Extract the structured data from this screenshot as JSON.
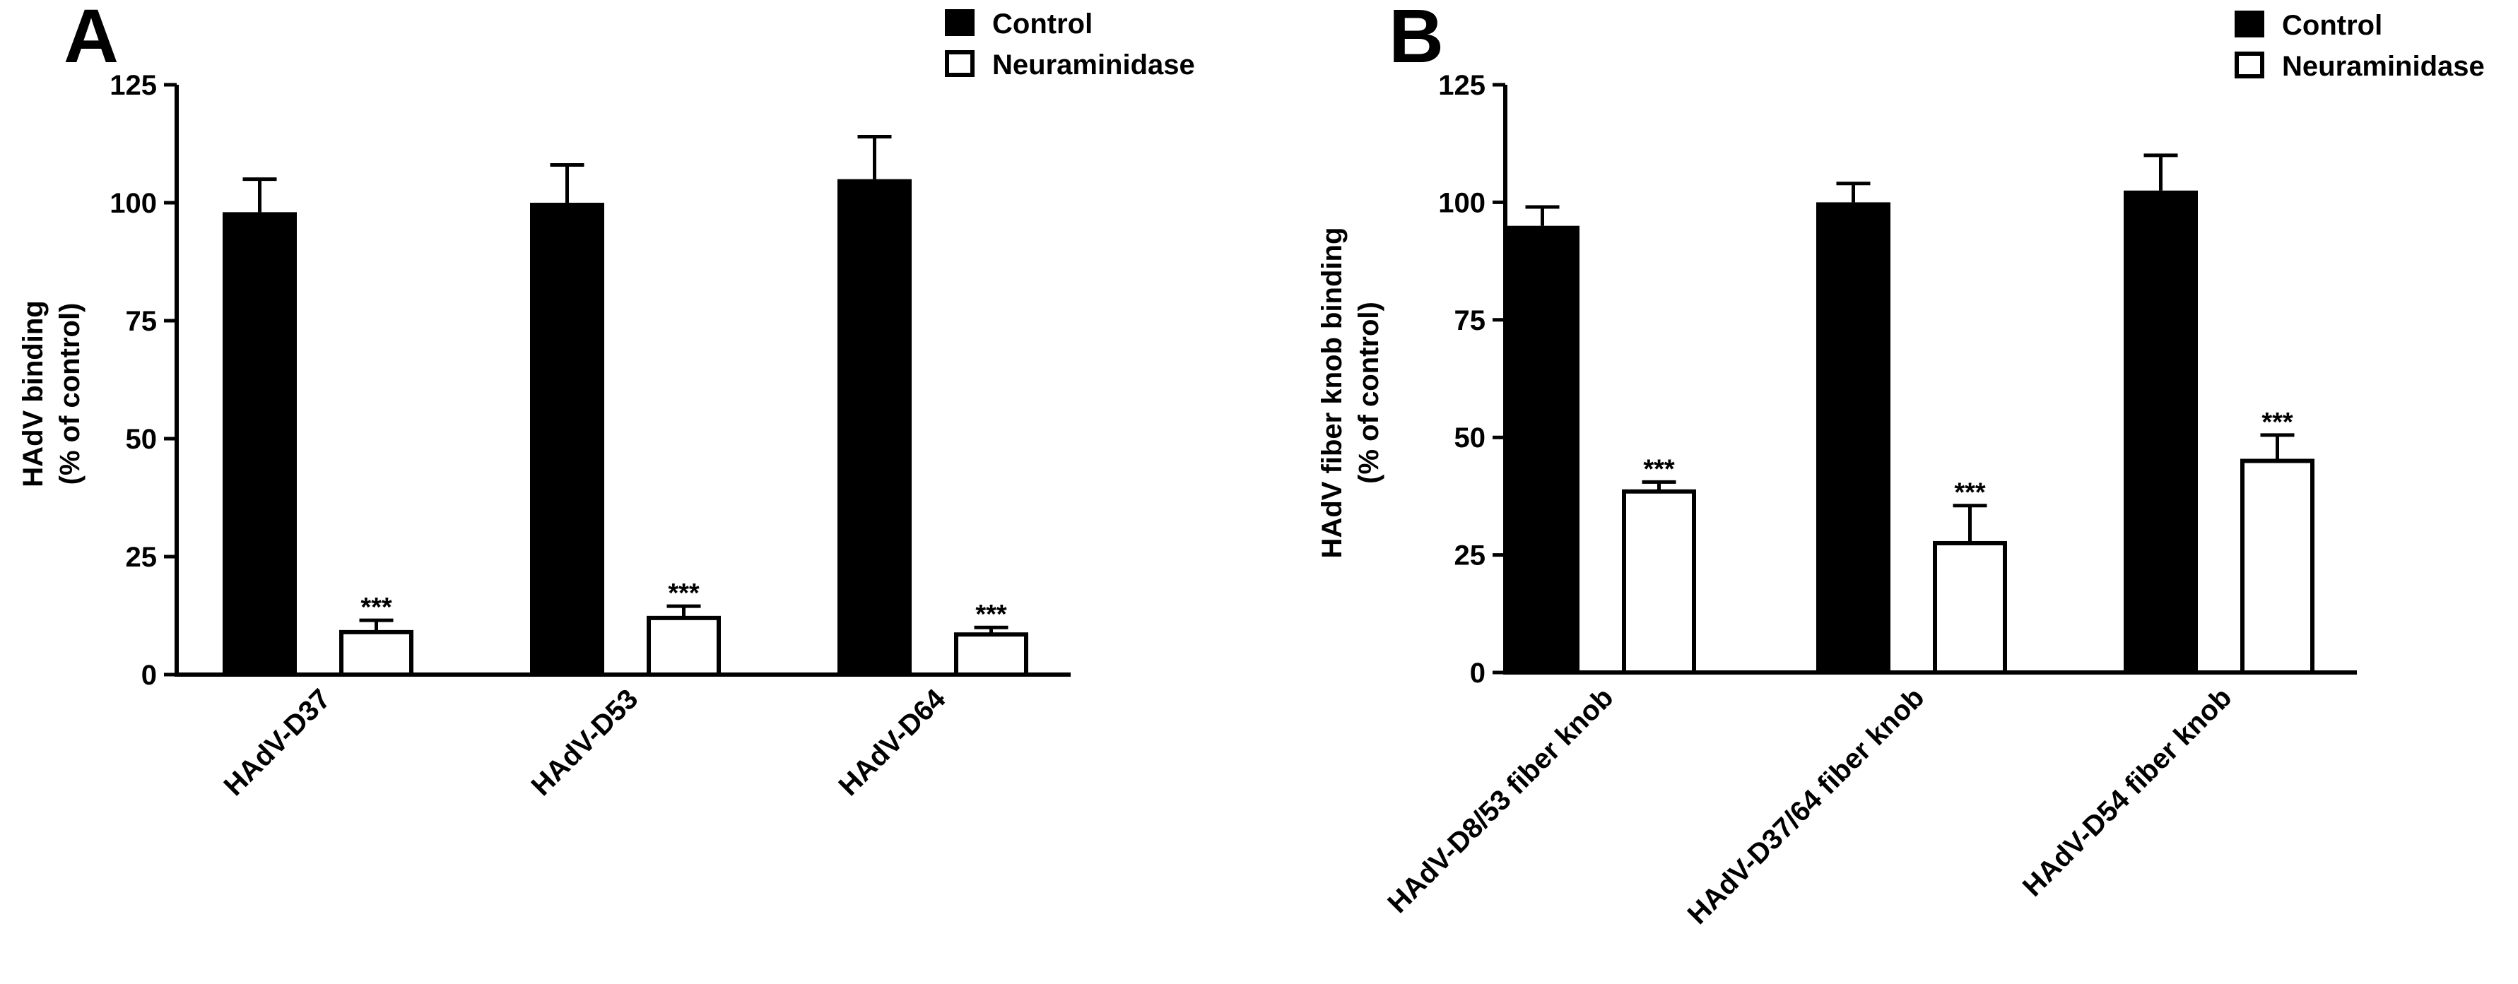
{
  "chart_data": [
    {
      "panel": "A",
      "type": "bar",
      "ylabel_line1": "HAdV binding",
      "ylabel_line2": "(% of control)",
      "ylim": [
        0,
        125
      ],
      "yticks": [
        "0",
        "25",
        "50",
        "75",
        "100",
        "125"
      ],
      "categories": [
        "HAdV-D37",
        "HAdV-D53",
        "HAdV-D64"
      ],
      "series": [
        {
          "name": "Control",
          "values": [
            98,
            100,
            105
          ],
          "errors": [
            7,
            8,
            9
          ]
        },
        {
          "name": "Neuraminidase",
          "values": [
            9,
            12,
            8.5
          ],
          "errors": [
            2.5,
            2.5,
            1.5
          ],
          "significance": [
            "***",
            "***",
            "***"
          ]
        }
      ],
      "legend": [
        "Control",
        "Neuraminidase"
      ]
    },
    {
      "panel": "B",
      "type": "bar",
      "ylabel_line1": "HAdV fiber knob binding",
      "ylabel_line2": "(% of control)",
      "ylim": [
        0,
        125
      ],
      "yticks": [
        "0",
        "25",
        "50",
        "75",
        "100",
        "125"
      ],
      "categories": [
        "HAdV-D8/53 fiber knob",
        "HAdV-D37/64 fiber knob",
        "HAdV-D54 fiber knob"
      ],
      "series": [
        {
          "name": "Control",
          "values": [
            95,
            100,
            102.5
          ],
          "errors": [
            4,
            4,
            7.5
          ]
        },
        {
          "name": "Neuraminidase",
          "values": [
            38.5,
            27.5,
            45
          ],
          "errors": [
            2,
            8,
            5.5
          ],
          "significance": [
            "***",
            "***",
            "***"
          ]
        }
      ],
      "legend": [
        "Control",
        "Neuraminidase"
      ]
    }
  ]
}
